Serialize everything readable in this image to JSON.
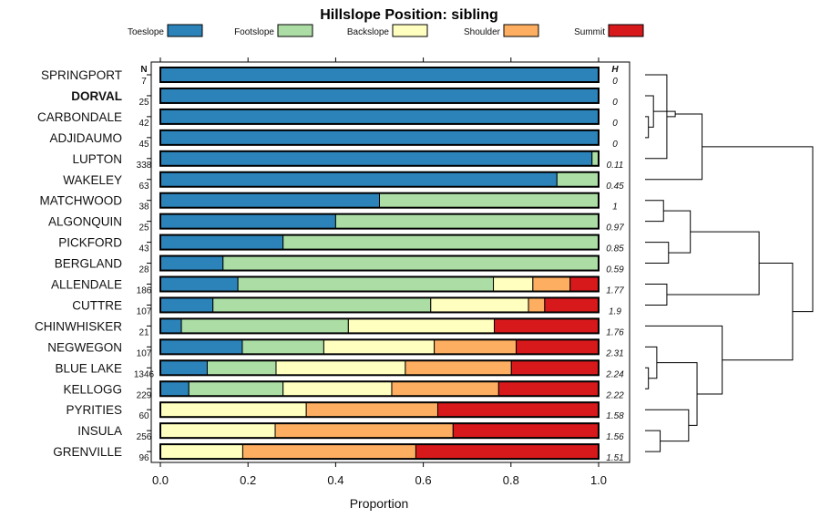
{
  "chart_data": {
    "type": "bar",
    "stacked": true,
    "orientation": "horizontal",
    "title": "Hillslope Position: sibling",
    "xlabel": "Proportion",
    "ylabel": "",
    "xlim": [
      0,
      1
    ],
    "x_ticks": [
      "0.0",
      "0.2",
      "0.4",
      "0.6",
      "0.8",
      "1.0"
    ],
    "n_header": "N",
    "h_header": "H",
    "legend_position": "top",
    "categories": [
      "SPRINGPORT",
      "DORVAL",
      "CARBONDALE",
      "ADJIDAUMO",
      "LUPTON",
      "WAKELEY",
      "MATCHWOOD",
      "ALGONQUIN",
      "PICKFORD",
      "BERGLAND",
      "ALLENDALE",
      "CUTTRE",
      "CHINWHISKER",
      "NEGWEGON",
      "BLUE LAKE",
      "KELLOGG",
      "PYRITIES",
      "INSULA",
      "GRENVILLE"
    ],
    "highlighted_category": "DORVAL",
    "n_values": [
      "7",
      "25",
      "42",
      "45",
      "338",
      "63",
      "38",
      "25",
      "43",
      "28",
      "186",
      "107",
      "21",
      "107",
      "1346",
      "229",
      "60",
      "256",
      "96"
    ],
    "h_values": [
      "0",
      "0",
      "0",
      "0",
      "0.11",
      "0.45",
      "1",
      "0.97",
      "0.85",
      "0.59",
      "1.77",
      "1.9",
      "1.76",
      "2.31",
      "2.24",
      "2.22",
      "1.58",
      "1.56",
      "1.51"
    ],
    "series": [
      {
        "name": "Toeslope",
        "color": "#2b83ba",
        "values": [
          1.0,
          1.0,
          1.0,
          1.0,
          0.985,
          0.905,
          0.5,
          0.4,
          0.28,
          0.143,
          0.177,
          0.12,
          0.048,
          0.187,
          0.107,
          0.065,
          0,
          0,
          0
        ]
      },
      {
        "name": "Footslope",
        "color": "#abdda4",
        "values": [
          0,
          0,
          0,
          0,
          0.015,
          0.095,
          0.5,
          0.6,
          0.72,
          0.857,
          0.583,
          0.497,
          0.381,
          0.186,
          0.157,
          0.215,
          0,
          0,
          0
        ]
      },
      {
        "name": "Backslope",
        "color": "#ffffbf",
        "values": [
          0,
          0,
          0,
          0,
          0,
          0,
          0,
          0,
          0,
          0,
          0.09,
          0.223,
          0.333,
          0.252,
          0.295,
          0.248,
          0.333,
          0.262,
          0.188
        ]
      },
      {
        "name": "Shoulder",
        "color": "#fdae61",
        "values": [
          0,
          0,
          0,
          0,
          0,
          0,
          0,
          0,
          0,
          0,
          0.085,
          0.037,
          0,
          0.187,
          0.242,
          0.244,
          0.3,
          0.406,
          0.395
        ]
      },
      {
        "name": "Summit",
        "color": "#d7191c",
        "values": [
          0,
          0,
          0,
          0,
          0,
          0,
          0,
          0,
          0,
          0,
          0.065,
          0.123,
          0.238,
          0.188,
          0.199,
          0.228,
          0.367,
          0.332,
          0.417
        ]
      }
    ],
    "dendrogram": {
      "type": "hierarchical-clustering",
      "merges": [
        {
          "left": "ADJIDAUMO",
          "right": "CARBONDALE",
          "height": 0.02
        },
        {
          "left": "1",
          "right": "DORVAL",
          "height": 0.05
        },
        {
          "left": "SPRINGPORT",
          "right": "LUPTON",
          "height": 0.13
        },
        {
          "left": "2",
          "right": "3",
          "height": 0.18
        },
        {
          "left": "4",
          "right": "WAKELEY",
          "height": 0.34
        },
        {
          "left": "MATCHWOOD",
          "right": "ALGONQUIN",
          "height": 0.11
        },
        {
          "left": "PICKFORD",
          "right": "BERGLAND",
          "height": 0.14
        },
        {
          "left": "6",
          "right": "7",
          "height": 0.27
        },
        {
          "left": "ALLENDALE",
          "right": "CUTTRE",
          "height": 0.13
        },
        {
          "left": "8",
          "right": "9",
          "height": 0.68
        },
        {
          "left": "BLUE LAKE",
          "right": "KELLOGG",
          "height": 0.02
        },
        {
          "left": "NEGWEGON",
          "right": "11",
          "height": 0.07
        },
        {
          "left": "INSULA",
          "right": "GRENVILLE",
          "height": 0.09
        },
        {
          "left": "PYRITIES",
          "right": "13",
          "height": 0.26
        },
        {
          "left": "12",
          "right": "14",
          "height": 0.31
        },
        {
          "left": "CHINWHISKER",
          "right": "15",
          "height": 0.46
        },
        {
          "left": "10",
          "right": "16",
          "height": 0.88
        },
        {
          "left": "5",
          "right": "17",
          "height": 1.0
        }
      ]
    }
  }
}
